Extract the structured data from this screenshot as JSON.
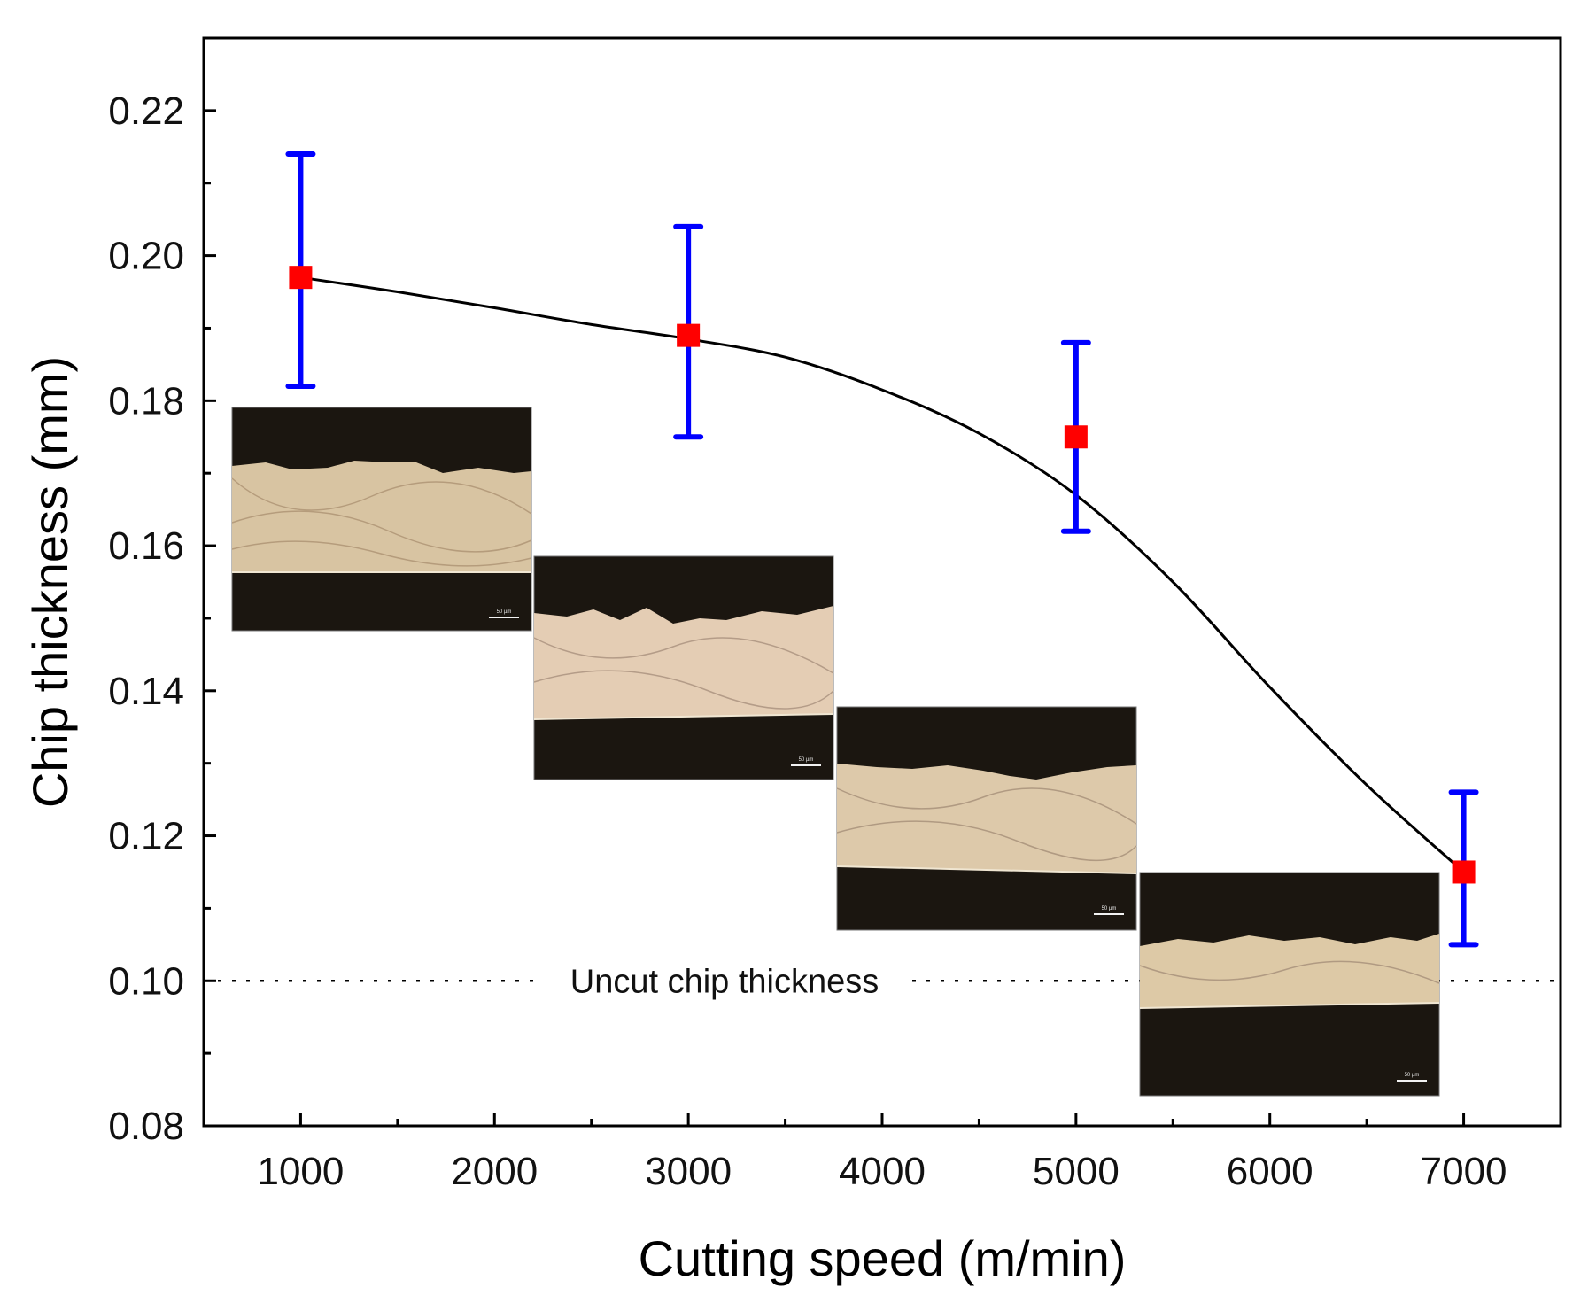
{
  "chart_data": {
    "type": "scatter",
    "title": "",
    "xlabel": "Cutting speed (m/min)",
    "ylabel": "Chip thickness (mm)",
    "xlim": [
      500,
      7500
    ],
    "ylim": [
      0.08,
      0.23
    ],
    "x_ticks": [
      1000,
      2000,
      3000,
      4000,
      5000,
      6000,
      7000
    ],
    "x_tick_labels": [
      "1000",
      "2000",
      "3000",
      "4000",
      "5000",
      "6000",
      "7000"
    ],
    "x_minor_ticks": [
      1500,
      2500,
      3500,
      4500,
      5500,
      6500
    ],
    "y_ticks": [
      0.08,
      0.1,
      0.12,
      0.14,
      0.16,
      0.18,
      0.2,
      0.22
    ],
    "y_tick_labels": [
      "0.08",
      "0.10",
      "0.12",
      "0.14",
      "0.16",
      "0.18",
      "0.20",
      "0.22"
    ],
    "y_minor_ticks": [
      0.09,
      0.11,
      0.13,
      0.15,
      0.17,
      0.19,
      0.21
    ],
    "grid": false,
    "series": [
      {
        "name": "Chip thickness",
        "marker": "square",
        "x": [
          1000,
          3000,
          5000,
          7000
        ],
        "y": [
          0.197,
          0.189,
          0.175,
          0.115
        ],
        "y_err_low": [
          0.182,
          0.175,
          0.162,
          0.105
        ],
        "y_err_high": [
          0.214,
          0.204,
          0.188,
          0.126
        ]
      }
    ],
    "fit_curve": {
      "x": [
        1000,
        1500,
        2000,
        2500,
        3000,
        3500,
        4000,
        4500,
        5000,
        5500,
        6000,
        6500,
        7000
      ],
      "y": [
        0.197,
        0.195,
        0.1928,
        0.1905,
        0.1885,
        0.186,
        0.1815,
        0.1755,
        0.167,
        0.155,
        0.1405,
        0.127,
        0.115
      ]
    },
    "reference_line": {
      "y": 0.1,
      "style": "dotted",
      "label": "Uncut chip thickness"
    },
    "insets": [
      {
        "name": "micrograph-1000",
        "caption": "50 µm"
      },
      {
        "name": "micrograph-3000",
        "caption": "50 µm"
      },
      {
        "name": "micrograph-5000",
        "caption": "50 µm"
      },
      {
        "name": "micrograph-7000",
        "caption": "50 µm"
      }
    ]
  },
  "colors": {
    "marker": "#ff0000",
    "error_bar": "#0000ff",
    "curve": "#000000",
    "axis": "#000000"
  }
}
